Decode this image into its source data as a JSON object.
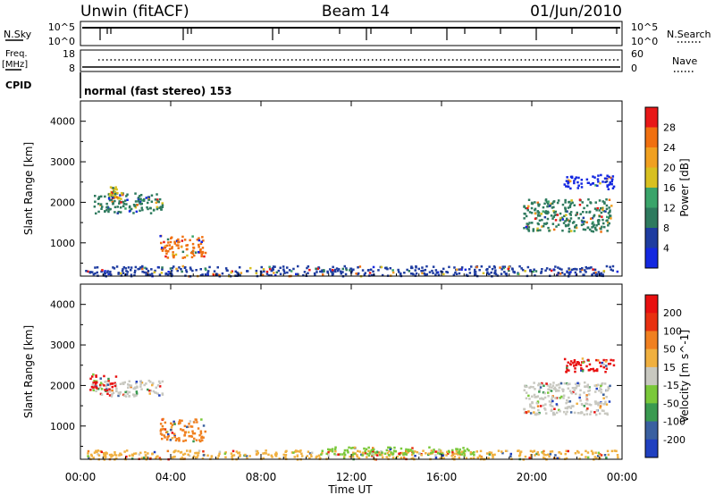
{
  "header": {
    "station": "Unwin (fitACF)",
    "beam": "Beam 14",
    "date": "01/Jun/2010"
  },
  "top_panels": {
    "nsky_label": "N.Sky",
    "nsky_ticks": [
      "10^5",
      "10^0"
    ],
    "nsearch_label": "N.Search",
    "freq_label_1": "Freq.",
    "freq_label_2": "[MHz]",
    "freq_ticks": [
      "18",
      "8"
    ],
    "nave_label": "Nave",
    "nave_ticks": [
      "60",
      "0"
    ],
    "cpid_label": "CPID",
    "cpid_text": "normal (fast stereo) 153"
  },
  "chart_data": [
    {
      "type": "heatmap",
      "panel": "power",
      "ylabel": "Slant Range [km]",
      "xlabel": "Time UT",
      "x_ticks": [
        "00:00",
        "04:00",
        "08:00",
        "12:00",
        "16:00",
        "20:00",
        "00:00"
      ],
      "x_range_hours": [
        0,
        24
      ],
      "y_ticks": [
        1000,
        2000,
        3000,
        4000
      ],
      "y_range_km": [
        180,
        4500
      ],
      "colorbar": {
        "label": "Power [dB]",
        "ticks": [
          "4",
          "8",
          "12",
          "16",
          "20",
          "24",
          "28"
        ],
        "colors": [
          "#1428e0",
          "#1e3ca0",
          "#2e7a5e",
          "#3aa46a",
          "#d8c020",
          "#f0a020",
          "#f07010",
          "#e81818"
        ]
      },
      "regions": [
        {
          "t0": 0.5,
          "t1": 3.6,
          "r0": 1750,
          "r1": 2250,
          "color": "#2e7a5e"
        },
        {
          "t0": 1.2,
          "t1": 1.8,
          "r0": 2100,
          "r1": 2400,
          "color": "#d8c020"
        },
        {
          "t0": 3.5,
          "t1": 5.5,
          "r0": 650,
          "r1": 1200,
          "color": "#f07010"
        },
        {
          "t0": 0.2,
          "t1": 23.8,
          "r0": 200,
          "r1": 450,
          "color": "#1e3ca0"
        },
        {
          "t0": 19.6,
          "t1": 23.5,
          "r0": 1300,
          "r1": 2100,
          "color": "#2e7a5e"
        },
        {
          "t0": 21.4,
          "t1": 23.6,
          "r0": 2350,
          "r1": 2700,
          "color": "#1428e0"
        }
      ]
    },
    {
      "type": "heatmap",
      "panel": "velocity",
      "ylabel": "Slant Range [km]",
      "xlabel": "Time UT",
      "x_ticks": [
        "00:00",
        "04:00",
        "08:00",
        "12:00",
        "16:00",
        "20:00",
        "00:00"
      ],
      "x_range_hours": [
        0,
        24
      ],
      "y_ticks": [
        1000,
        2000,
        3000,
        4000
      ],
      "y_range_km": [
        180,
        4500
      ],
      "colorbar": {
        "label": "Velocity [m s^-1]",
        "ticks": [
          "200",
          "100",
          "50",
          "15",
          "-15",
          "-50",
          "-100",
          "-200"
        ],
        "colors": [
          "#2040c0",
          "#3a60a0",
          "#3a9a50",
          "#7ac83a",
          "#c8c8c0",
          "#f0b040",
          "#f08020",
          "#e83010",
          "#e81010"
        ]
      },
      "regions": [
        {
          "t0": 0.5,
          "t1": 3.6,
          "r0": 1750,
          "r1": 2150,
          "color": "#c8c8c0"
        },
        {
          "t0": 0.4,
          "t1": 1.6,
          "r0": 1900,
          "r1": 2300,
          "color": "#e81010"
        },
        {
          "t0": 3.5,
          "t1": 5.5,
          "r0": 650,
          "r1": 1200,
          "color": "#f08020"
        },
        {
          "t0": 0.2,
          "t1": 23.8,
          "r0": 200,
          "r1": 420,
          "color": "#f0b040"
        },
        {
          "t0": 10.5,
          "t1": 17.5,
          "r0": 300,
          "r1": 500,
          "color": "#7ac83a"
        },
        {
          "t0": 19.6,
          "t1": 23.5,
          "r0": 1300,
          "r1": 2100,
          "color": "#c8c8c0"
        },
        {
          "t0": 21.4,
          "t1": 23.6,
          "r0": 2350,
          "r1": 2700,
          "color": "#e81010"
        }
      ]
    }
  ]
}
